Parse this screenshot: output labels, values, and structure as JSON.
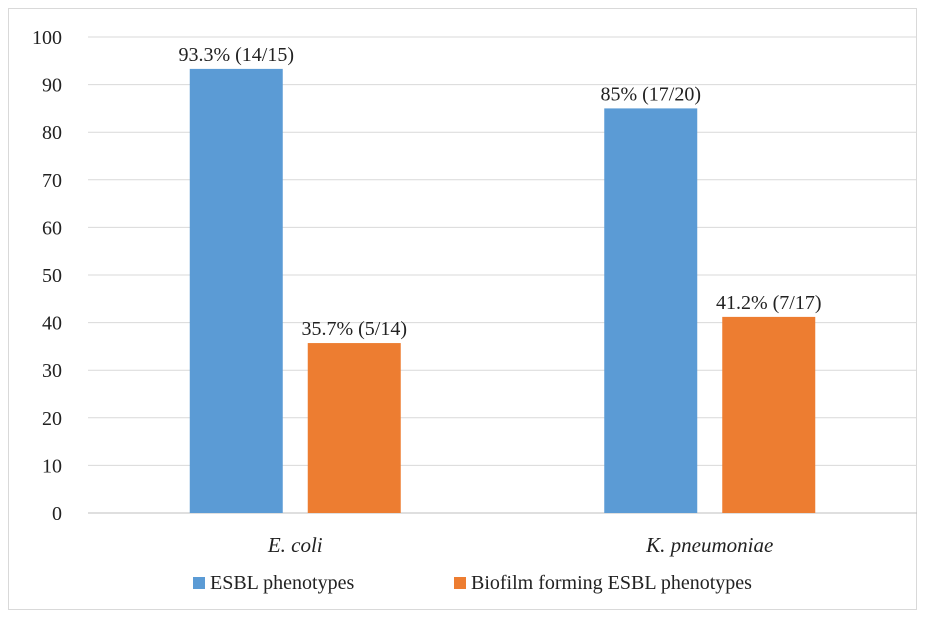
{
  "chart_data": {
    "type": "bar",
    "title": "",
    "xlabel": "",
    "ylabel": "",
    "categories": [
      "E. coli",
      "K. pneumoniae"
    ],
    "ylim": [
      0,
      100
    ],
    "yticks": [
      0,
      10,
      20,
      30,
      40,
      50,
      60,
      70,
      80,
      90,
      100
    ],
    "grid": true,
    "legend_position": "bottom",
    "series": [
      {
        "name": "ESBL phenotypes",
        "color": "#5B9BD5",
        "values": [
          93.3,
          85
        ],
        "labels": [
          "93.3% (14/15)",
          "85% (17/20)"
        ]
      },
      {
        "name": "Biofilm forming ESBL phenotypes",
        "color": "#ED7D31",
        "values": [
          35.7,
          41.2
        ],
        "labels": [
          "35.7% (5/14)",
          "41.2% (7/17)"
        ]
      }
    ]
  }
}
